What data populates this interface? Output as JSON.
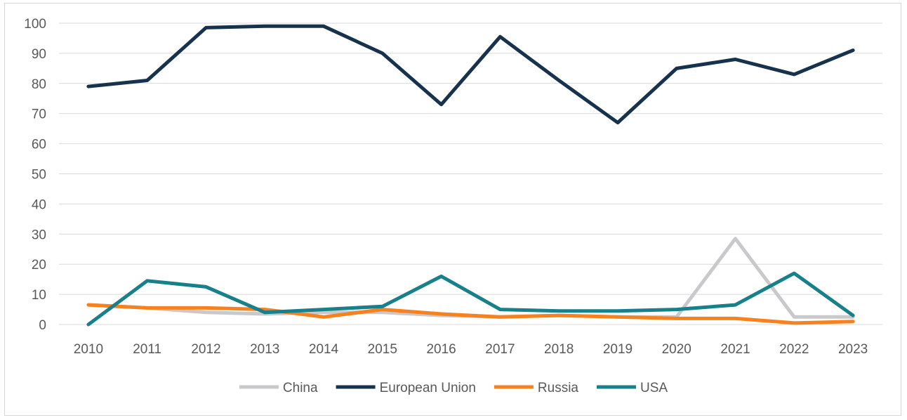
{
  "chart_data": {
    "type": "line",
    "title": "",
    "xlabel": "",
    "ylabel": "",
    "ylim": [
      0,
      100
    ],
    "yticks": [
      0,
      10,
      20,
      30,
      40,
      50,
      60,
      70,
      80,
      90,
      100
    ],
    "categories": [
      "2010",
      "2011",
      "2012",
      "2013",
      "2014",
      "2015",
      "2016",
      "2017",
      "2018",
      "2019",
      "2020",
      "2021",
      "2022",
      "2023"
    ],
    "grid": true,
    "legend": "bottom",
    "series": [
      {
        "name": "China",
        "color": "#c9c9cc",
        "values": [
          6.5,
          5.5,
          4.0,
          3.5,
          4.0,
          4.0,
          3.0,
          2.5,
          3.0,
          2.5,
          2.5,
          28.5,
          2.5,
          2.5
        ]
      },
      {
        "name": "European Union",
        "color": "#17324d",
        "values": [
          79,
          81,
          98.5,
          99,
          99,
          90,
          73,
          95.5,
          81,
          67,
          85,
          88,
          83,
          91
        ]
      },
      {
        "name": "Russia",
        "color": "#f5821f",
        "values": [
          6.5,
          5.5,
          5.5,
          5.0,
          2.5,
          5.0,
          3.5,
          2.5,
          3.0,
          2.5,
          2.0,
          2.0,
          0.5,
          1.0
        ]
      },
      {
        "name": "USA",
        "color": "#17808a",
        "values": [
          0,
          14.5,
          12.5,
          4.0,
          5.0,
          6.0,
          16.0,
          5.0,
          4.5,
          4.5,
          5.0,
          6.5,
          17.0,
          3.0
        ]
      }
    ]
  }
}
